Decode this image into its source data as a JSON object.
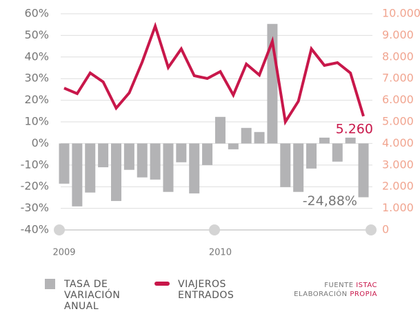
{
  "chart_data": {
    "type": "combo",
    "categories": [
      "2009",
      null,
      null,
      null,
      null,
      null,
      null,
      null,
      null,
      null,
      null,
      null,
      "2010",
      null,
      null,
      null,
      null,
      null,
      null,
      null,
      null,
      null,
      null,
      null
    ],
    "series": [
      {
        "name": "TASA DE VARIACIÓN ANUAL",
        "type": "bar",
        "axis": "y",
        "color": "#b3b3b5",
        "values": [
          -18.6,
          -29.1,
          -22.7,
          -11,
          -26.6,
          -12.2,
          -15.7,
          -16.7,
          -22.4,
          -8.7,
          -23.1,
          -10,
          12.3,
          -2.7,
          7.2,
          5.3,
          55.3,
          -20.2,
          -22.4,
          -11.6,
          2.7,
          -8.4,
          2.7,
          -24.88
        ],
        "value_labels": [
          null,
          null,
          null,
          null,
          null,
          null,
          null,
          null,
          null,
          null,
          null,
          null,
          null,
          null,
          null,
          null,
          null,
          null,
          null,
          null,
          null,
          null,
          null,
          "-24,88%"
        ]
      },
      {
        "name": "VIAJEROS ENTRADOS",
        "type": "line",
        "axis": "y2",
        "color": "#c8174a",
        "values": [
          6560,
          6306,
          7261,
          6847,
          5637,
          6338,
          7771,
          9427,
          7516,
          8376,
          7134,
          7006,
          7325,
          6242,
          7675,
          7166,
          8726,
          5000,
          5955,
          8376,
          7611,
          7739,
          7261,
          5260
        ],
        "value_labels": [
          null,
          null,
          null,
          null,
          null,
          null,
          null,
          null,
          null,
          null,
          null,
          null,
          null,
          null,
          null,
          null,
          null,
          null,
          null,
          null,
          null,
          null,
          null,
          "5.260"
        ]
      }
    ],
    "ylim": [
      -40,
      60
    ],
    "yticks": [
      {
        "value": -40,
        "label": "-40%"
      },
      {
        "value": -30,
        "label": "-30%"
      },
      {
        "value": -20,
        "label": "-20%"
      },
      {
        "value": -10,
        "label": "-10%"
      },
      {
        "value": 0,
        "label": "0%"
      },
      {
        "value": 10,
        "label": "10%"
      },
      {
        "value": 20,
        "label": "20%"
      },
      {
        "value": 30,
        "label": "30%"
      },
      {
        "value": 40,
        "label": "40%"
      },
      {
        "value": 50,
        "label": "50%"
      },
      {
        "value": 60,
        "label": "60%"
      }
    ],
    "y2lim": [
      0,
      10000
    ],
    "y2ticks": [
      0,
      {
        "value": 1000,
        "label": "1.000"
      },
      {
        "value": 2000,
        "label": "2.000"
      },
      {
        "value": 3000,
        "label": "3.000"
      },
      {
        "value": 4000,
        "label": "4.000"
      },
      {
        "value": 5000,
        "label": "5.000"
      },
      {
        "value": 6000,
        "label": "6.000"
      },
      {
        "value": 7000,
        "label": "7.000"
      },
      {
        "value": 8000,
        "label": "8.000"
      },
      {
        "value": 9000,
        "label": "9.000"
      },
      {
        "value": 10000,
        "label": "10.000"
      }
    ],
    "grid": true,
    "source": {
      "label": "FUENTE",
      "value": "ISTAC"
    },
    "credit": {
      "label": "ELABORACIÓN",
      "value": "PROPIA"
    }
  }
}
